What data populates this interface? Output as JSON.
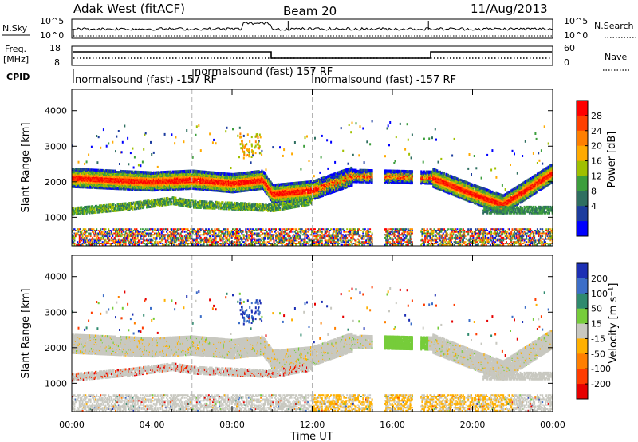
{
  "header": {
    "station": "Adak West (fitACF)",
    "beam": "Beam 20",
    "date": "11/Aug/2013"
  },
  "panels": {
    "nsky_label": "N.Sky",
    "nsearch_label": "N.Search",
    "freq_label_1": "Freq.",
    "freq_label_2": "[MHz]",
    "nave_label": "Nave",
    "cpid_label": "CPID",
    "nsky_ticks": [
      "10^5",
      "10^0"
    ],
    "freq_ticks": [
      "18",
      "8"
    ],
    "nave_ticks": [
      "60",
      "0"
    ],
    "cpid_segments": [
      {
        "text": "normalsound (fast) -157 RF",
        "start_h": 0
      },
      {
        "text": "normalsound (fast) 157 RF",
        "start_h": 6
      },
      {
        "text": "normalsound (fast) -157 RF",
        "start_h": 12
      }
    ]
  },
  "power_colorbar": {
    "label": "Power [dB]",
    "ticks": [
      "28",
      "24",
      "20",
      "16",
      "12",
      "8",
      "4"
    ],
    "colors": [
      "#ff0000",
      "#ff4000",
      "#ff7f00",
      "#ffaa00",
      "#a0c000",
      "#3c9e3c",
      "#2f6f60",
      "#1c3c9e",
      "#0000ff"
    ]
  },
  "velocity_colorbar": {
    "label": "Velocity [m s⁻¹]",
    "ticks": [
      "200",
      "100",
      "50",
      "15",
      "-15",
      "-50",
      "-100",
      "-200"
    ],
    "colors": [
      "#1c2fb4",
      "#3c6ec8",
      "#2f8a6e",
      "#76cc3a",
      "#c8c8c0",
      "#ffb000",
      "#ff7f00",
      "#ff3c00",
      "#e60000"
    ]
  },
  "chart_data": [
    {
      "type": "heatmap",
      "name": "power",
      "ylabel": "Slant Range [km]",
      "xlabel": "Time UT",
      "x_ticks": [
        "00:00",
        "04:00",
        "08:00",
        "12:00",
        "16:00",
        "20:00",
        "00:00"
      ],
      "y_ticks": [
        1000,
        2000,
        3000,
        4000
      ],
      "xlim_h": [
        0,
        24
      ],
      "ylim_km": [
        200,
        4600
      ],
      "band_main_km": [
        [
          0,
          2150
        ],
        [
          4,
          2050
        ],
        [
          6,
          2100
        ],
        [
          8,
          2000
        ],
        [
          9.5,
          2100
        ],
        [
          10,
          1700
        ],
        [
          12,
          1800
        ],
        [
          14,
          2200
        ],
        [
          18,
          2150
        ],
        [
          20,
          1700
        ],
        [
          21.5,
          1400
        ],
        [
          24,
          2300
        ]
      ],
      "band_low_km": [
        [
          0,
          1200
        ],
        [
          3,
          1350
        ],
        [
          5,
          1500
        ],
        [
          6,
          1400
        ],
        [
          10,
          1300
        ],
        [
          12,
          1500
        ]
      ],
      "dashed_lines_h": [
        6,
        12
      ]
    },
    {
      "type": "heatmap",
      "name": "velocity",
      "ylabel": "Slant Range [km]",
      "xlabel": "Time UT",
      "x_ticks": [
        "00:00",
        "04:00",
        "08:00",
        "12:00",
        "16:00",
        "20:00",
        "00:00"
      ],
      "y_ticks": [
        1000,
        2000,
        3000,
        4000
      ],
      "xlim_h": [
        0,
        24
      ],
      "ylim_km": [
        200,
        4600
      ],
      "dashed_lines_h": [
        6,
        12
      ]
    }
  ]
}
